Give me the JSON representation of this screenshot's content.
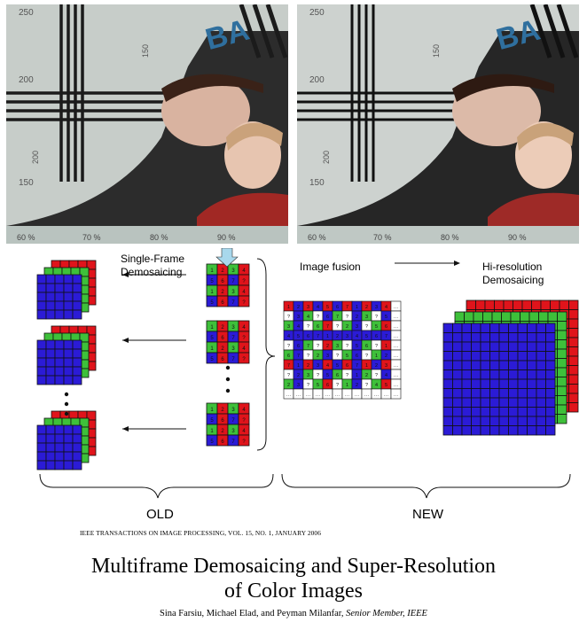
{
  "photos": {
    "left": {
      "scale_ticks": [
        "250",
        "200",
        "150"
      ],
      "vertical_ticks": [
        "150",
        "200"
      ],
      "bottom_ticks": [
        "60 %",
        "70 %",
        "80 %",
        "90 %"
      ],
      "chart_letters": "BA"
    },
    "right": {
      "scale_ticks": [
        "250",
        "200",
        "150"
      ],
      "vertical_ticks": [
        "150",
        "200"
      ],
      "bottom_ticks": [
        "60 %",
        "70 %",
        "80 %",
        "90 %"
      ],
      "chart_letters": "BA"
    }
  },
  "diagram": {
    "single_frame_label": "Single-Frame\nDemosaicing",
    "image_fusion_label": "Image fusion",
    "hires_label": "Hi-resolution\nDemosaicing",
    "old_label": "OLD",
    "new_label": "NEW",
    "grid_digits": [
      "1",
      "2",
      "3",
      "4",
      "5",
      "6",
      "7",
      "?"
    ],
    "colors": {
      "red": "#e0141b",
      "green": "#3ec03a",
      "blue": "#2b1bd6",
      "arrow_blue": "#a8d8ec"
    }
  },
  "paper": {
    "journal_line": "IEEE TRANSACTIONS ON IMAGE PROCESSING, VOL. 15, NO. 1, JANUARY 2006",
    "title_line1": "Multiframe Demosaicing and Super-Resolution",
    "title_line2": "of Color Images",
    "authors": "Sina Farsiu, Michael Elad, and Peyman Milanfar,",
    "author_role": "Senior Member, IEEE"
  }
}
